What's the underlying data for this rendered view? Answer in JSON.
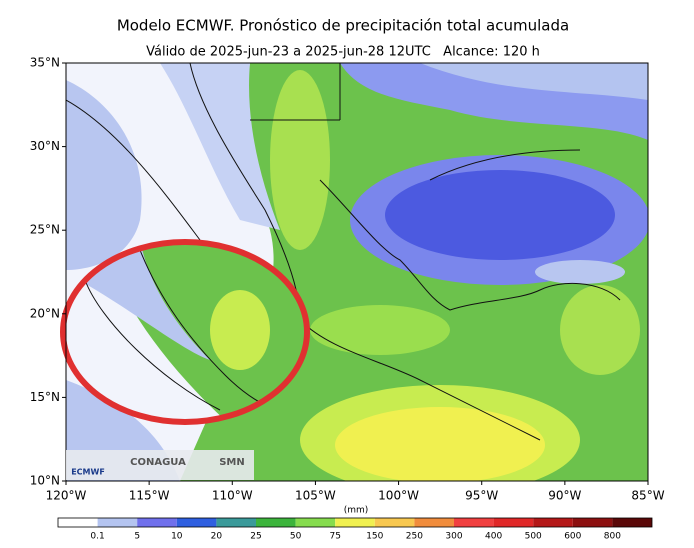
{
  "title": "Modelo ECMWF. Pronóstico de precipitación total acumulada",
  "subtitle": "Válido de 2025-jun-23 a 2025-jun-28 12UTC   Alcance: 120 h",
  "map": {
    "lon_range": [
      -120,
      -85
    ],
    "lat_range": [
      10,
      35
    ],
    "lon_ticks": [
      {
        "value": -120,
        "label": "120°W"
      },
      {
        "value": -115,
        "label": "115°W"
      },
      {
        "value": -110,
        "label": "110°W"
      },
      {
        "value": -105,
        "label": "105°W"
      },
      {
        "value": -100,
        "label": "100°W"
      },
      {
        "value": -95,
        "label": "95°W"
      },
      {
        "value": -90,
        "label": "90°W"
      },
      {
        "value": -85,
        "label": "85°W"
      }
    ],
    "lat_ticks": [
      {
        "value": 10,
        "label": "10°N"
      },
      {
        "value": 15,
        "label": "15°N"
      },
      {
        "value": 20,
        "label": "20°N"
      },
      {
        "value": 25,
        "label": "25°N"
      },
      {
        "value": 30,
        "label": "30°N"
      },
      {
        "value": 35,
        "label": "35°N"
      }
    ]
  },
  "colorbar": {
    "unit": "(mm)",
    "labels": [
      "0.1",
      "5",
      "10",
      "20",
      "25",
      "50",
      "75",
      "150",
      "250",
      "300",
      "400",
      "500",
      "600",
      "800"
    ],
    "colors": [
      "#ffffff",
      "#b4c4f0",
      "#7070ec",
      "#2f5fe0",
      "#3a9a9a",
      "#3cb43c",
      "#86dc4e",
      "#f0f050",
      "#f8c850",
      "#f08c3c",
      "#f04040",
      "#e02828",
      "#b41818",
      "#8c1010",
      "#5a0808"
    ]
  },
  "logos": [
    "ECMWF",
    "CONAGUA",
    "SMN"
  ]
}
